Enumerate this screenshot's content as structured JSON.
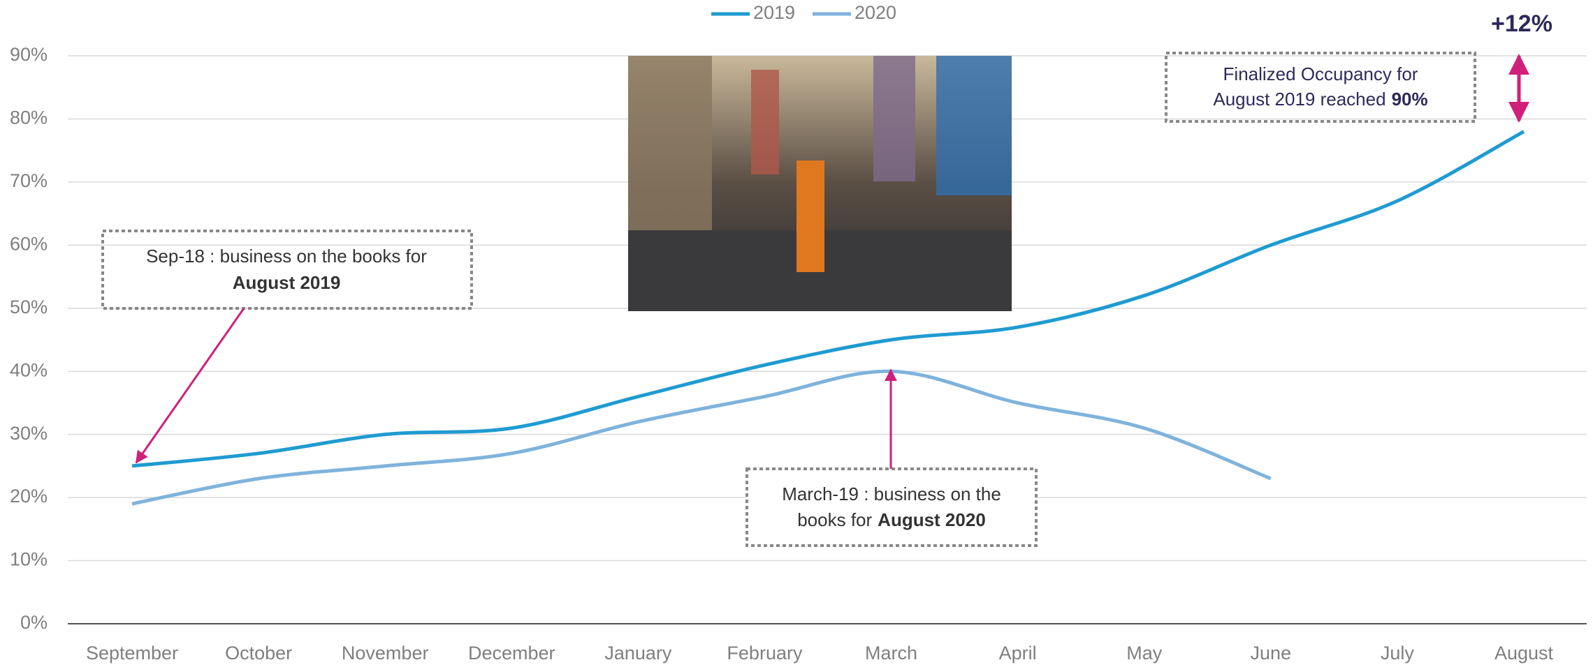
{
  "chart_data": {
    "type": "line",
    "categories": [
      "September",
      "October",
      "November",
      "December",
      "January",
      "February",
      "March",
      "April",
      "May",
      "June",
      "July",
      "August"
    ],
    "series": [
      {
        "name": "2019",
        "color": "#1f9bd1",
        "values": [
          25,
          27,
          30,
          31,
          36,
          41,
          45,
          47,
          52,
          60,
          67,
          78
        ]
      },
      {
        "name": "2020",
        "color": "#7fb3dc",
        "values": [
          19,
          23,
          25,
          27,
          32,
          36,
          40,
          35,
          31,
          23,
          null,
          null
        ]
      }
    ],
    "ylim": [
      0,
      90
    ],
    "yticks": [
      {
        "value": 0,
        "label": "0%"
      },
      {
        "value": 10,
        "label": "10%"
      },
      {
        "value": 20,
        "label": "20%"
      },
      {
        "value": 30,
        "label": "30%"
      },
      {
        "value": 40,
        "label": "40%"
      },
      {
        "value": 50,
        "label": "50%"
      },
      {
        "value": 60,
        "label": "60%"
      },
      {
        "value": 70,
        "label": "70%"
      },
      {
        "value": 80,
        "label": "80%"
      },
      {
        "value": 90,
        "label": "90%"
      }
    ],
    "grid": true,
    "legend": "top",
    "annotations": [
      {
        "lines": [
          {
            "text": "Sep-18 : business on the books for"
          },
          {
            "bold": "August 2019"
          }
        ]
      },
      {
        "lines": [
          {
            "text": "March-19 : business on the"
          },
          {
            "text": "books for",
            "bold": "August 2020"
          }
        ]
      },
      {
        "lines": [
          {
            "text": "Finalized Occupancy for"
          },
          {
            "text": "August 2019 reached",
            "bold": "90%"
          }
        ]
      }
    ],
    "change_label": "+12%"
  }
}
